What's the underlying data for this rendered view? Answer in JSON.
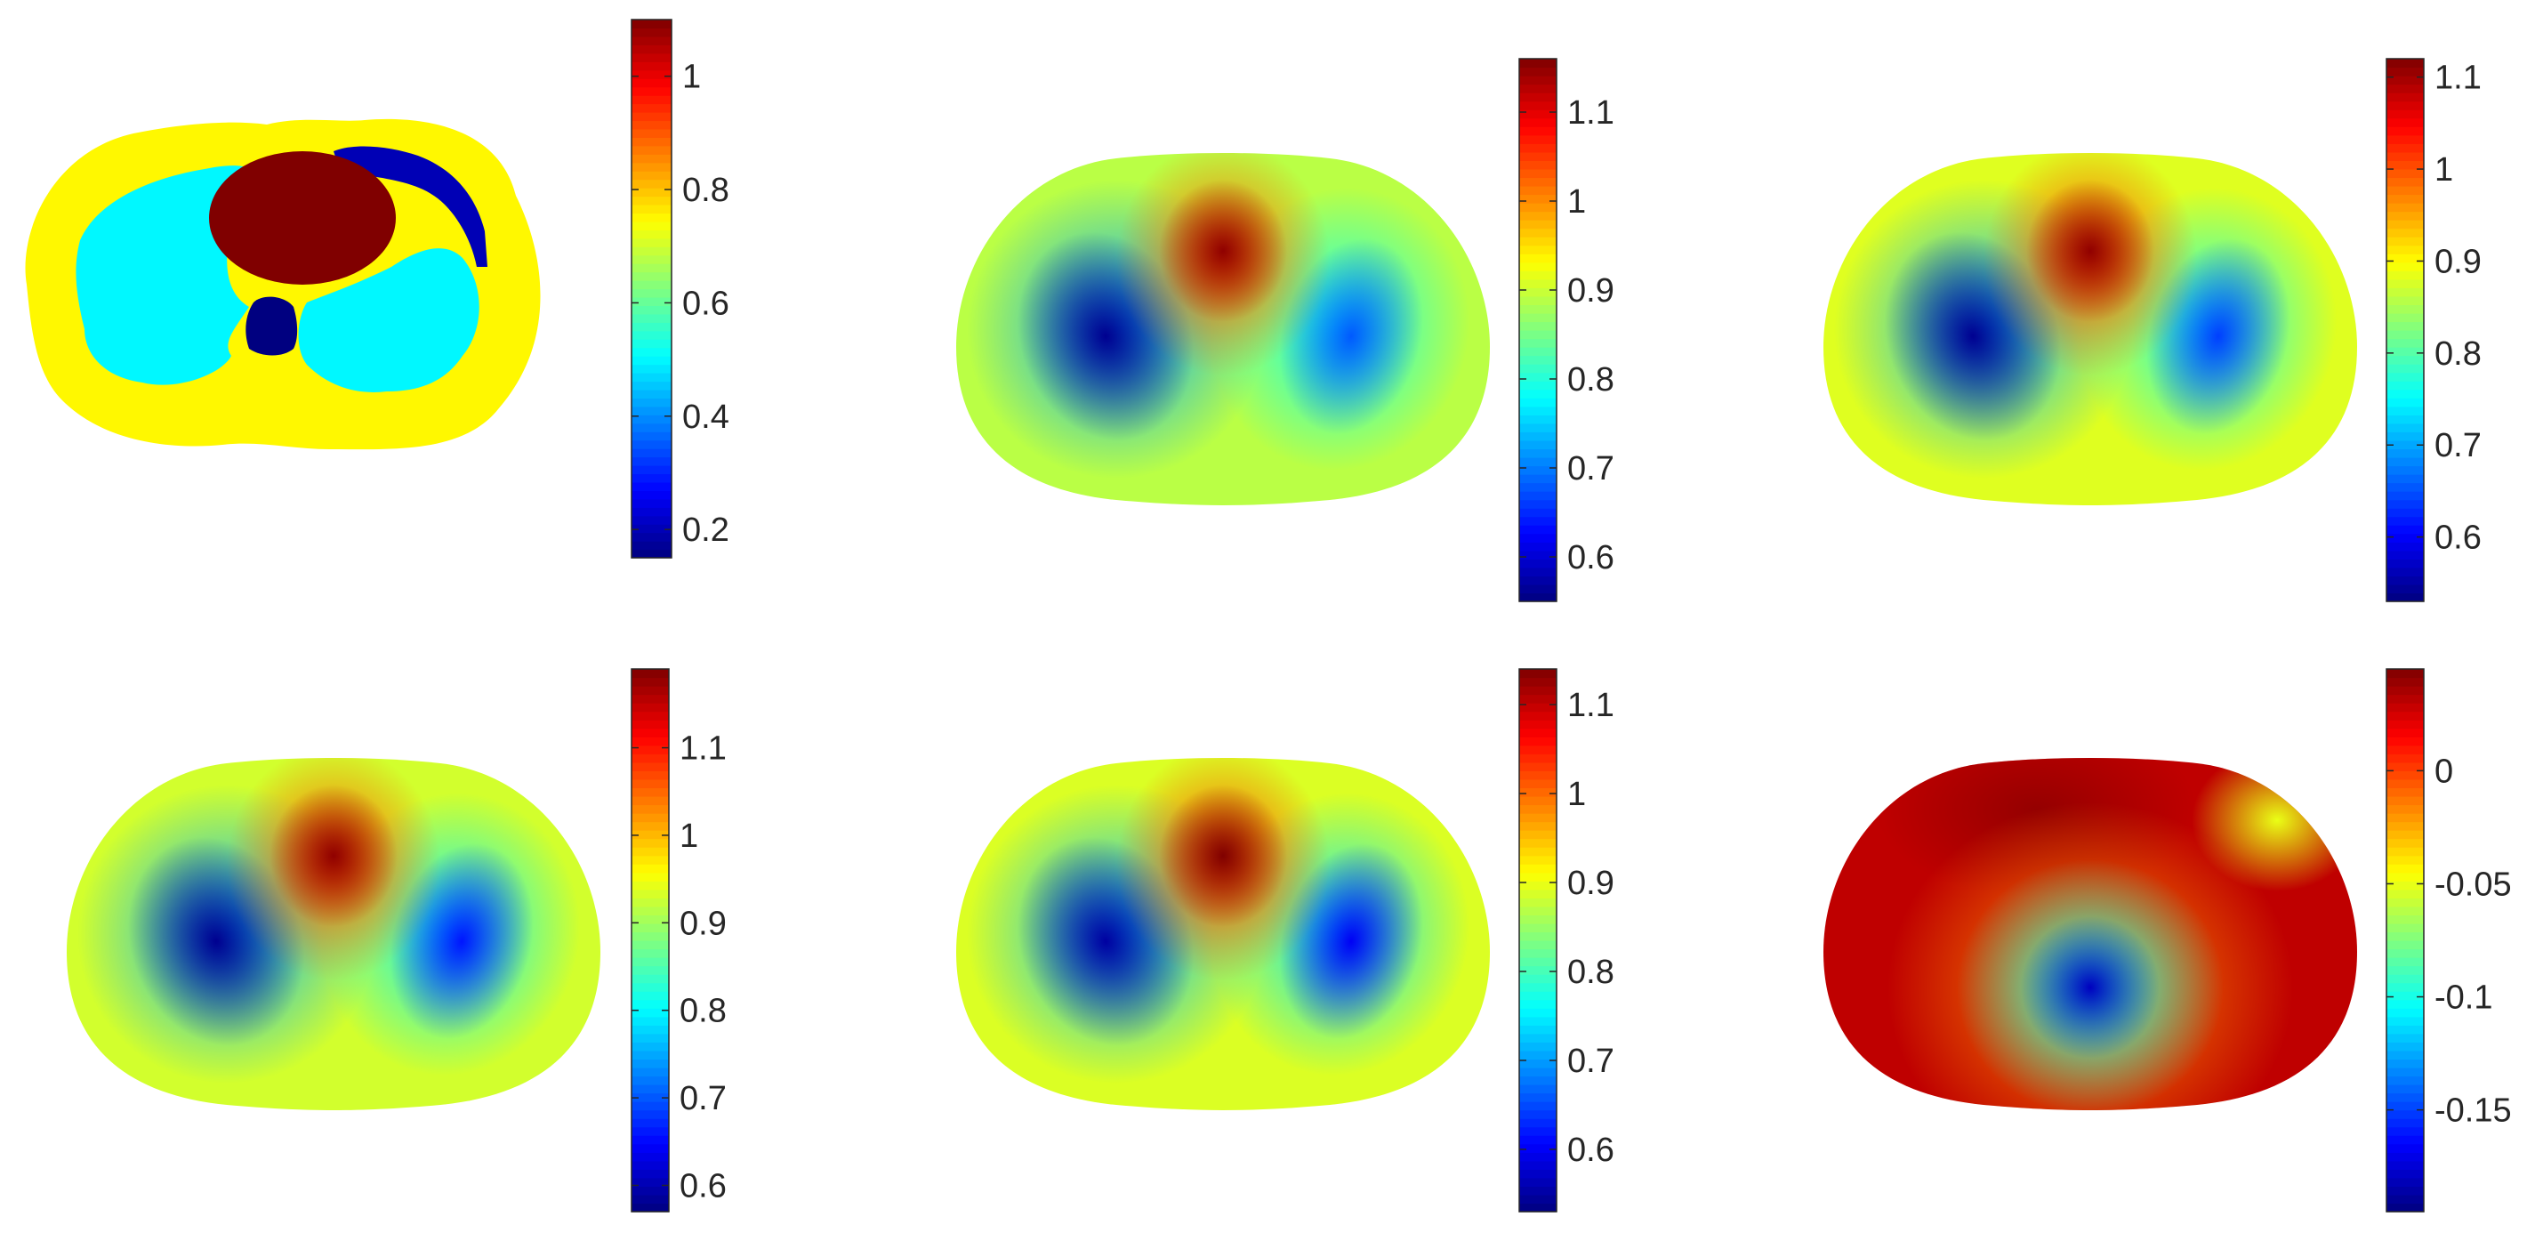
{
  "chart_data": [
    {
      "type": "heatmap",
      "panel": "top-left",
      "colormap": "jet",
      "map_kind": "segmented",
      "clim": [
        0.15,
        1.1
      ],
      "colorbar": {
        "ticks": [
          0.2,
          0.4,
          0.6,
          0.8,
          1
        ],
        "tick_labels": [
          "0.2",
          "0.4",
          "0.6",
          "0.8",
          "1"
        ]
      },
      "regions": [
        {
          "name": "",
          "value": 0.75
        },
        {
          "name": "",
          "value": 0.5
        },
        {
          "name": "",
          "value": 1.1
        },
        {
          "name": "",
          "value": 0.15
        },
        {
          "name": "",
          "value": 0.2
        }
      ]
    },
    {
      "type": "heatmap",
      "panel": "top-middle",
      "colormap": "jet",
      "map_kind": "smooth",
      "clim": [
        0.55,
        1.16
      ],
      "colorbar": {
        "ticks": [
          0.6,
          0.7,
          0.8,
          0.9,
          1,
          1.1
        ],
        "tick_labels": [
          "0.6",
          "0.7",
          "0.8",
          "0.9",
          "1",
          "1.1"
        ]
      },
      "field": {
        "base": 0.89,
        "center_peak": 1.15,
        "left_min": 0.56,
        "right_min": 0.68
      }
    },
    {
      "type": "heatmap",
      "panel": "top-right",
      "colormap": "jet",
      "map_kind": "smooth",
      "clim": [
        0.53,
        1.12
      ],
      "colorbar": {
        "ticks": [
          0.6,
          0.7,
          0.8,
          0.9,
          1,
          1.1
        ],
        "tick_labels": [
          "0.6",
          "0.7",
          "0.8",
          "0.9",
          "1",
          "1.1"
        ]
      },
      "field": {
        "base": 0.88,
        "center_peak": 1.11,
        "left_min": 0.54,
        "right_min": 0.64
      }
    },
    {
      "type": "heatmap",
      "panel": "bottom-left",
      "colormap": "jet",
      "map_kind": "smooth",
      "clim": [
        0.57,
        1.19
      ],
      "colorbar": {
        "ticks": [
          0.6,
          0.7,
          0.8,
          0.9,
          1,
          1.1
        ],
        "tick_labels": [
          "0.6",
          "0.7",
          "0.8",
          "0.9",
          "1",
          "1.1"
        ]
      },
      "field": {
        "base": 0.93,
        "center_peak": 1.18,
        "left_min": 0.58,
        "right_min": 0.66
      }
    },
    {
      "type": "heatmap",
      "panel": "bottom-middle",
      "colormap": "jet",
      "map_kind": "smooth",
      "clim": [
        0.53,
        1.14
      ],
      "colorbar": {
        "ticks": [
          0.6,
          0.7,
          0.8,
          0.9,
          1,
          1.1
        ],
        "tick_labels": [
          "0.6",
          "0.7",
          "0.8",
          "0.9",
          "1",
          "1.1"
        ]
      },
      "field": {
        "base": 0.89,
        "center_peak": 1.14,
        "left_min": 0.55,
        "right_min": 0.6
      }
    },
    {
      "type": "heatmap",
      "panel": "bottom-right",
      "colormap": "jet",
      "map_kind": "ring",
      "clim": [
        -0.195,
        0.045
      ],
      "colorbar": {
        "ticks": [
          -0.15,
          -0.1,
          -0.05,
          0
        ],
        "tick_labels": [
          "-0.15",
          "-0.1",
          "-0.05",
          "0"
        ]
      },
      "field": {
        "base": 0.03,
        "center_min": -0.18,
        "top_max": 0.04,
        "right_top_bump": -0.05
      }
    }
  ]
}
